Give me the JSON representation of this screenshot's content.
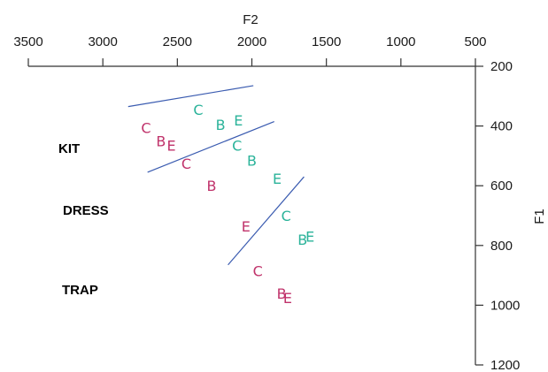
{
  "chart_data": {
    "type": "scatter",
    "x_axis": {
      "label": "F2",
      "position": "top",
      "reversed": true,
      "range": [
        3500,
        500
      ],
      "ticks": [
        "3500",
        "3000",
        "2500",
        "2000",
        "1500",
        "1000",
        "500"
      ]
    },
    "y_axis": {
      "label": "F1",
      "position": "right",
      "reversed": true,
      "range": [
        200,
        1200
      ],
      "ticks": [
        "200",
        "400",
        "600",
        "800",
        "1000",
        "1200"
      ]
    },
    "row_labels": [
      "KIT",
      "DRESS",
      "TRAP"
    ],
    "colors": {
      "magenta": "#c0336b",
      "teal": "#2bb39a",
      "line": "#3a5bb0",
      "axis": "#333333"
    },
    "points": [
      {
        "label": "C",
        "color": "teal",
        "f2": 2360,
        "f1": 345
      },
      {
        "label": "B",
        "color": "teal",
        "f2": 2210,
        "f1": 395
      },
      {
        "label": "E",
        "color": "teal",
        "f2": 2090,
        "f1": 380
      },
      {
        "label": "C",
        "color": "magenta",
        "f2": 2710,
        "f1": 405
      },
      {
        "label": "B",
        "color": "magenta",
        "f2": 2610,
        "f1": 450
      },
      {
        "label": "E",
        "color": "magenta",
        "f2": 2540,
        "f1": 465
      },
      {
        "label": "C",
        "color": "teal",
        "f2": 2100,
        "f1": 465
      },
      {
        "label": "B",
        "color": "teal",
        "f2": 2000,
        "f1": 515
      },
      {
        "label": "C",
        "color": "magenta",
        "f2": 2440,
        "f1": 525
      },
      {
        "label": "B",
        "color": "magenta",
        "f2": 2270,
        "f1": 600
      },
      {
        "label": "E",
        "color": "teal",
        "f2": 1830,
        "f1": 575
      },
      {
        "label": "C",
        "color": "teal",
        "f2": 1770,
        "f1": 700
      },
      {
        "label": "E",
        "color": "magenta",
        "f2": 2040,
        "f1": 735
      },
      {
        "label": "B",
        "color": "teal",
        "f2": 1660,
        "f1": 780
      },
      {
        "label": "E",
        "color": "teal",
        "f2": 1610,
        "f1": 770
      },
      {
        "label": "C",
        "color": "magenta",
        "f2": 1960,
        "f1": 885
      },
      {
        "label": "B",
        "color": "magenta",
        "f2": 1800,
        "f1": 960
      },
      {
        "label": "E",
        "color": "magenta",
        "f2": 1760,
        "f1": 975
      }
    ],
    "lines": [
      {
        "from": [
          2830,
          335
        ],
        "to": [
          1990,
          265
        ]
      },
      {
        "from": [
          2700,
          555
        ],
        "to": [
          1850,
          385
        ]
      },
      {
        "from": [
          2160,
          865
        ],
        "to": [
          1650,
          570
        ]
      }
    ]
  }
}
